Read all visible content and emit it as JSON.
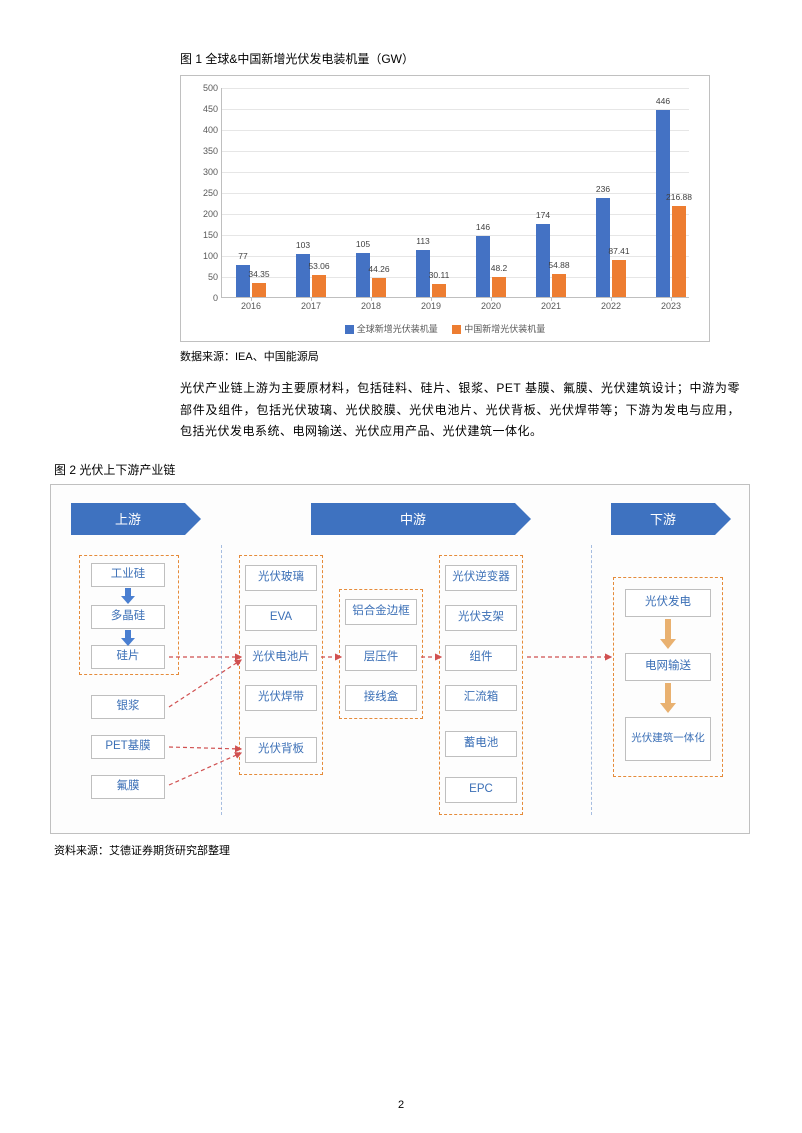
{
  "fig1": {
    "title": "图 1 全球&中国新增光伏发电装机量（GW）",
    "source": "数据来源：IEA、中国能源局",
    "type": "bar",
    "legend": {
      "s1": "全球新增光伏装机量",
      "s2": "中国新增光伏装机量"
    },
    "colors": {
      "s1": "#4472c4",
      "s2": "#ed7d31",
      "grid": "#e6e6e6",
      "axis": "#bfbfbf",
      "text": "#595959",
      "bg": "#ffffff"
    },
    "ylim": [
      0,
      500
    ],
    "ytick_step": 50,
    "font_axis": 9,
    "years": [
      "2016",
      "2017",
      "2018",
      "2019",
      "2020",
      "2021",
      "2022",
      "2023"
    ],
    "s1_values": [
      77,
      103,
      105,
      113,
      146,
      174,
      236,
      446
    ],
    "s2_values": [
      34.35,
      53.06,
      44.26,
      30.11,
      48.2,
      54.88,
      87.41,
      216.88
    ]
  },
  "paragraph": "光伏产业链上游为主要原材料，包括硅料、硅片、银浆、PET 基膜、氟膜、光伏建筑设计；中游为零部件及组件，包括光伏玻璃、光伏胶膜、光伏电池片、光伏背板、光伏焊带等；下游为发电与应用，包括光伏发电系统、电网输送、光伏应用产品、光伏建筑一体化。",
  "fig2": {
    "title": "图 2 光伏上下游产业链",
    "source": "资料来源：艾德证券期货研究部整理",
    "type": "flowchart",
    "stage_color": "#3e72c0",
    "node_border": "#bfbfbf",
    "node_text_color": "#3b6fb6",
    "dashed_color": "#e58b3a",
    "sep_color": "#a6bde0",
    "arrow_blue": "#4a7fd1",
    "arrow_red": "#d05050",
    "stages": {
      "up": "上游",
      "mid": "中游",
      "down": "下游"
    },
    "nodes": {
      "n1": "工业硅",
      "n2": "多晶硅",
      "n3": "硅片",
      "n4": "银浆",
      "n5": "PET基膜",
      "n6": "氟膜",
      "n7": "光伏玻璃",
      "n8": "EVA",
      "n9": "光伏电池片",
      "n10": "光伏焊带",
      "n11": "光伏背板",
      "n12": "铝合金边框",
      "n13": "层压件",
      "n14": "接线盒",
      "n15": "光伏逆变器",
      "n16": "光伏支架",
      "n17": "组件",
      "n18": "汇流箱",
      "n19": "蓄电池",
      "n20": "EPC",
      "n21": "光伏发电",
      "n22": "电网输送",
      "n23": "光伏建筑一体化"
    }
  },
  "page_number": "2"
}
